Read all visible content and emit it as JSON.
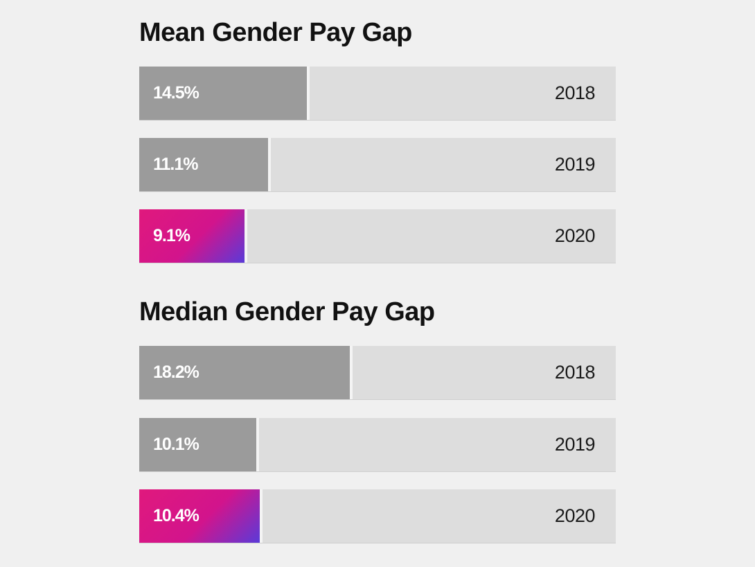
{
  "chart_data": [
    {
      "type": "bar",
      "orientation": "horizontal",
      "title": "Mean Gender Pay Gap",
      "categories": [
        "2018",
        "2019",
        "2020"
      ],
      "values": [
        14.5,
        11.1,
        9.1
      ],
      "value_labels": [
        "14.5%",
        "11.1%",
        "9.1%"
      ],
      "unit": "%",
      "xlim": [
        0,
        100
      ],
      "colors": [
        "#9b9b9b",
        "#9b9b9b",
        "#e0197d"
      ],
      "grid": false
    },
    {
      "type": "bar",
      "orientation": "horizontal",
      "title": "Median Gender Pay Gap",
      "categories": [
        "2018",
        "2019",
        "2020"
      ],
      "values": [
        18.2,
        10.1,
        10.4
      ],
      "value_labels": [
        "18.2%",
        "10.1%",
        "10.4%"
      ],
      "unit": "%",
      "xlim": [
        0,
        100
      ],
      "colors": [
        "#9b9b9b",
        "#9b9b9b",
        "#e0197d"
      ],
      "grid": false
    }
  ]
}
